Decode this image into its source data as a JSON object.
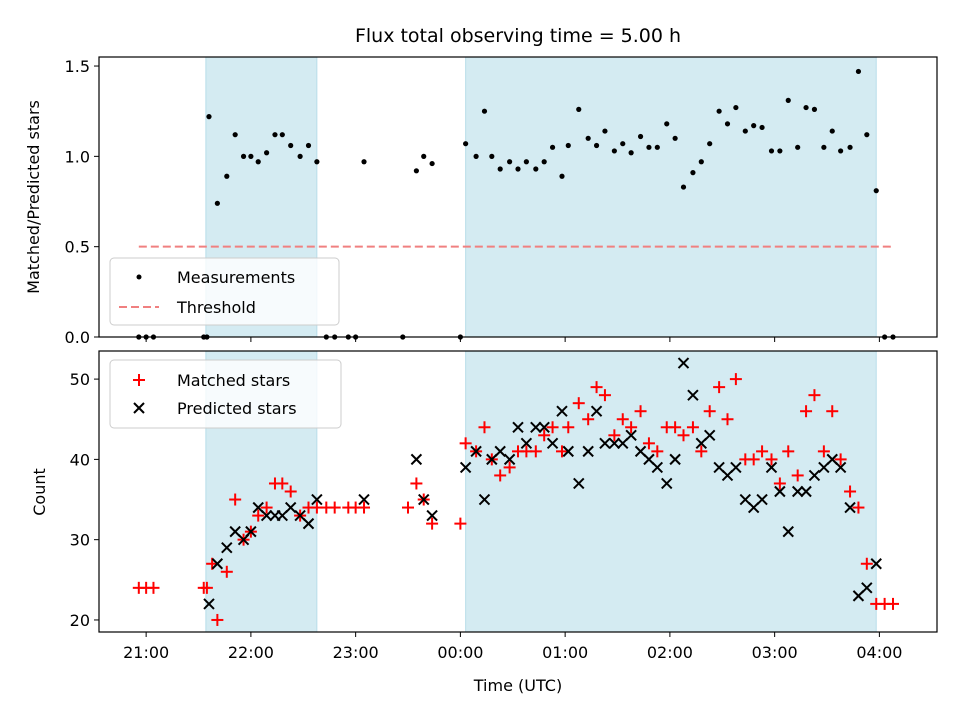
{
  "chart_data": [
    {
      "type": "scatter",
      "title": "Flux total observing time = 5.00 h",
      "xlabel": "",
      "ylabel": "Matched/Predicted stars",
      "ylim": [
        0,
        1.55
      ],
      "yticks": [
        0.0,
        0.5,
        1.0,
        1.5
      ],
      "ytick_labels": [
        "0.0",
        "0.5",
        "1.0",
        "1.5"
      ],
      "xlim_hours": [
        20.55,
        28.55
      ],
      "legend_position": "lower-left",
      "observing_windows_hours": [
        [
          21.57,
          22.63
        ],
        [
          24.05,
          27.97
        ]
      ],
      "window_color": "#add8e6",
      "series": [
        {
          "name": "Measurements",
          "marker": "dot",
          "color": "#000000",
          "points": [
            [
              20.93,
              0
            ],
            [
              21.0,
              0
            ],
            [
              21.07,
              0
            ],
            [
              21.55,
              0
            ],
            [
              21.58,
              0
            ],
            [
              21.6,
              1.22
            ],
            [
              21.68,
              0.74
            ],
            [
              21.77,
              0.89
            ],
            [
              21.85,
              1.12
            ],
            [
              21.93,
              1.0
            ],
            [
              22.0,
              1.0
            ],
            [
              22.07,
              0.97
            ],
            [
              22.15,
              1.02
            ],
            [
              22.23,
              1.12
            ],
            [
              22.3,
              1.12
            ],
            [
              22.38,
              1.06
            ],
            [
              22.47,
              1.0
            ],
            [
              22.55,
              1.06
            ],
            [
              22.63,
              0.97
            ],
            [
              22.72,
              0
            ],
            [
              22.8,
              0
            ],
            [
              22.93,
              0
            ],
            [
              23.0,
              0
            ],
            [
              23.08,
              0.97
            ],
            [
              23.45,
              0
            ],
            [
              23.58,
              0.92
            ],
            [
              23.65,
              1.0
            ],
            [
              23.73,
              0.96
            ],
            [
              24.0,
              0
            ],
            [
              24.05,
              1.07
            ],
            [
              24.15,
              1.0
            ],
            [
              24.23,
              1.25
            ],
            [
              24.3,
              1.0
            ],
            [
              24.38,
              0.93
            ],
            [
              24.47,
              0.97
            ],
            [
              24.55,
              0.93
            ],
            [
              24.63,
              0.97
            ],
            [
              24.72,
              0.93
            ],
            [
              24.8,
              0.97
            ],
            [
              24.88,
              1.05
            ],
            [
              24.97,
              0.89
            ],
            [
              25.03,
              1.06
            ],
            [
              25.13,
              1.26
            ],
            [
              25.22,
              1.1
            ],
            [
              25.3,
              1.06
            ],
            [
              25.38,
              1.14
            ],
            [
              25.47,
              1.03
            ],
            [
              25.55,
              1.07
            ],
            [
              25.63,
              1.02
            ],
            [
              25.72,
              1.11
            ],
            [
              25.8,
              1.05
            ],
            [
              25.88,
              1.05
            ],
            [
              25.97,
              1.18
            ],
            [
              26.05,
              1.1
            ],
            [
              26.13,
              0.83
            ],
            [
              26.22,
              0.91
            ],
            [
              26.3,
              0.97
            ],
            [
              26.38,
              1.07
            ],
            [
              26.47,
              1.25
            ],
            [
              26.55,
              1.18
            ],
            [
              26.63,
              1.27
            ],
            [
              26.72,
              1.14
            ],
            [
              26.8,
              1.17
            ],
            [
              26.88,
              1.16
            ],
            [
              26.97,
              1.03
            ],
            [
              27.05,
              1.03
            ],
            [
              27.13,
              1.31
            ],
            [
              27.22,
              1.05
            ],
            [
              27.3,
              1.27
            ],
            [
              27.38,
              1.26
            ],
            [
              27.47,
              1.05
            ],
            [
              27.55,
              1.14
            ],
            [
              27.63,
              1.03
            ],
            [
              27.72,
              1.05
            ],
            [
              27.8,
              1.47
            ],
            [
              27.88,
              1.12
            ],
            [
              27.97,
              0.81
            ],
            [
              28.05,
              0
            ],
            [
              28.13,
              0
            ]
          ]
        },
        {
          "name": "Threshold",
          "style": "dashed-line",
          "color": "#f08080",
          "points": [
            [
              20.93,
              0.5
            ],
            [
              28.12,
              0.5
            ]
          ]
        }
      ]
    },
    {
      "type": "scatter",
      "title": "",
      "xlabel": "Time (UTC)",
      "ylabel": "Count",
      "ylim": [
        18.5,
        53.5
      ],
      "yticks": [
        20,
        30,
        40,
        50
      ],
      "ytick_labels": [
        "20",
        "30",
        "40",
        "50"
      ],
      "xlim_hours": [
        20.55,
        28.55
      ],
      "xticks_hours": [
        21,
        22,
        23,
        24,
        25,
        26,
        27,
        28
      ],
      "xtick_labels": [
        "21:00",
        "22:00",
        "23:00",
        "00:00",
        "01:00",
        "02:00",
        "03:00",
        "04:00"
      ],
      "legend_position": "upper-left",
      "observing_windows_hours": [
        [
          21.57,
          22.63
        ],
        [
          24.05,
          27.97
        ]
      ],
      "window_color": "#add8e6",
      "series": [
        {
          "name": "Matched stars",
          "marker": "plus",
          "color": "#ff0000",
          "points": [
            [
              20.93,
              24
            ],
            [
              21.0,
              24
            ],
            [
              21.07,
              24
            ],
            [
              21.55,
              24
            ],
            [
              21.58,
              24
            ],
            [
              21.63,
              27
            ],
            [
              21.68,
              20
            ],
            [
              21.77,
              26
            ],
            [
              21.85,
              35
            ],
            [
              21.93,
              30
            ],
            [
              22.0,
              31
            ],
            [
              22.07,
              33
            ],
            [
              22.15,
              34
            ],
            [
              22.23,
              37
            ],
            [
              22.3,
              37
            ],
            [
              22.38,
              36
            ],
            [
              22.47,
              33
            ],
            [
              22.55,
              34
            ],
            [
              22.63,
              34
            ],
            [
              22.72,
              34
            ],
            [
              22.8,
              34
            ],
            [
              22.93,
              34
            ],
            [
              23.0,
              34
            ],
            [
              23.08,
              34
            ],
            [
              23.5,
              34
            ],
            [
              23.58,
              37
            ],
            [
              23.65,
              35
            ],
            [
              23.73,
              32
            ],
            [
              24.0,
              32
            ],
            [
              24.05,
              42
            ],
            [
              24.15,
              41
            ],
            [
              24.23,
              44
            ],
            [
              24.3,
              40
            ],
            [
              24.38,
              38
            ],
            [
              24.47,
              39
            ],
            [
              24.55,
              41
            ],
            [
              24.63,
              41
            ],
            [
              24.72,
              41
            ],
            [
              24.8,
              43
            ],
            [
              24.88,
              44
            ],
            [
              24.97,
              41
            ],
            [
              25.03,
              44
            ],
            [
              25.13,
              47
            ],
            [
              25.22,
              45
            ],
            [
              25.3,
              49
            ],
            [
              25.38,
              48
            ],
            [
              25.47,
              43
            ],
            [
              25.55,
              45
            ],
            [
              25.63,
              44
            ],
            [
              25.72,
              46
            ],
            [
              25.8,
              42
            ],
            [
              25.88,
              41
            ],
            [
              25.97,
              44
            ],
            [
              26.05,
              44
            ],
            [
              26.13,
              43
            ],
            [
              26.22,
              44
            ],
            [
              26.3,
              41
            ],
            [
              26.38,
              46
            ],
            [
              26.47,
              49
            ],
            [
              26.55,
              45
            ],
            [
              26.63,
              50
            ],
            [
              26.72,
              40
            ],
            [
              26.8,
              40
            ],
            [
              26.88,
              41
            ],
            [
              26.97,
              40
            ],
            [
              27.05,
              37
            ],
            [
              27.13,
              41
            ],
            [
              27.22,
              38
            ],
            [
              27.3,
              46
            ],
            [
              27.38,
              48
            ],
            [
              27.47,
              41
            ],
            [
              27.55,
              46
            ],
            [
              27.63,
              40
            ],
            [
              27.72,
              36
            ],
            [
              27.8,
              34
            ],
            [
              27.88,
              27
            ],
            [
              27.97,
              22
            ],
            [
              28.05,
              22
            ],
            [
              28.13,
              22
            ]
          ]
        },
        {
          "name": "Predicted stars",
          "marker": "x",
          "color": "#000000",
          "points": [
            [
              21.6,
              22
            ],
            [
              21.68,
              27
            ],
            [
              21.77,
              29
            ],
            [
              21.85,
              31
            ],
            [
              21.93,
              30
            ],
            [
              22.0,
              31
            ],
            [
              22.07,
              34
            ],
            [
              22.15,
              33
            ],
            [
              22.23,
              33
            ],
            [
              22.3,
              33
            ],
            [
              22.38,
              34
            ],
            [
              22.47,
              33
            ],
            [
              22.55,
              32
            ],
            [
              22.63,
              35
            ],
            [
              23.08,
              35
            ],
            [
              23.58,
              40
            ],
            [
              23.65,
              35
            ],
            [
              23.73,
              33
            ],
            [
              24.05,
              39
            ],
            [
              24.15,
              41
            ],
            [
              24.23,
              35
            ],
            [
              24.3,
              40
            ],
            [
              24.38,
              41
            ],
            [
              24.47,
              40
            ],
            [
              24.55,
              44
            ],
            [
              24.63,
              42
            ],
            [
              24.72,
              44
            ],
            [
              24.8,
              44
            ],
            [
              24.88,
              42
            ],
            [
              24.97,
              46
            ],
            [
              25.03,
              41
            ],
            [
              25.13,
              37
            ],
            [
              25.22,
              41
            ],
            [
              25.3,
              46
            ],
            [
              25.38,
              42
            ],
            [
              25.47,
              42
            ],
            [
              25.55,
              42
            ],
            [
              25.63,
              43
            ],
            [
              25.72,
              41
            ],
            [
              25.8,
              40
            ],
            [
              25.88,
              39
            ],
            [
              25.97,
              37
            ],
            [
              26.05,
              40
            ],
            [
              26.13,
              52
            ],
            [
              26.22,
              48
            ],
            [
              26.3,
              42
            ],
            [
              26.38,
              43
            ],
            [
              26.47,
              39
            ],
            [
              26.55,
              38
            ],
            [
              26.63,
              39
            ],
            [
              26.72,
              35
            ],
            [
              26.8,
              34
            ],
            [
              26.88,
              35
            ],
            [
              26.97,
              39
            ],
            [
              27.05,
              36
            ],
            [
              27.13,
              31
            ],
            [
              27.22,
              36
            ],
            [
              27.3,
              36
            ],
            [
              27.38,
              38
            ],
            [
              27.47,
              39
            ],
            [
              27.55,
              40
            ],
            [
              27.63,
              39
            ],
            [
              27.72,
              34
            ],
            [
              27.8,
              23
            ],
            [
              27.88,
              24
            ],
            [
              27.97,
              27
            ]
          ]
        }
      ]
    }
  ]
}
